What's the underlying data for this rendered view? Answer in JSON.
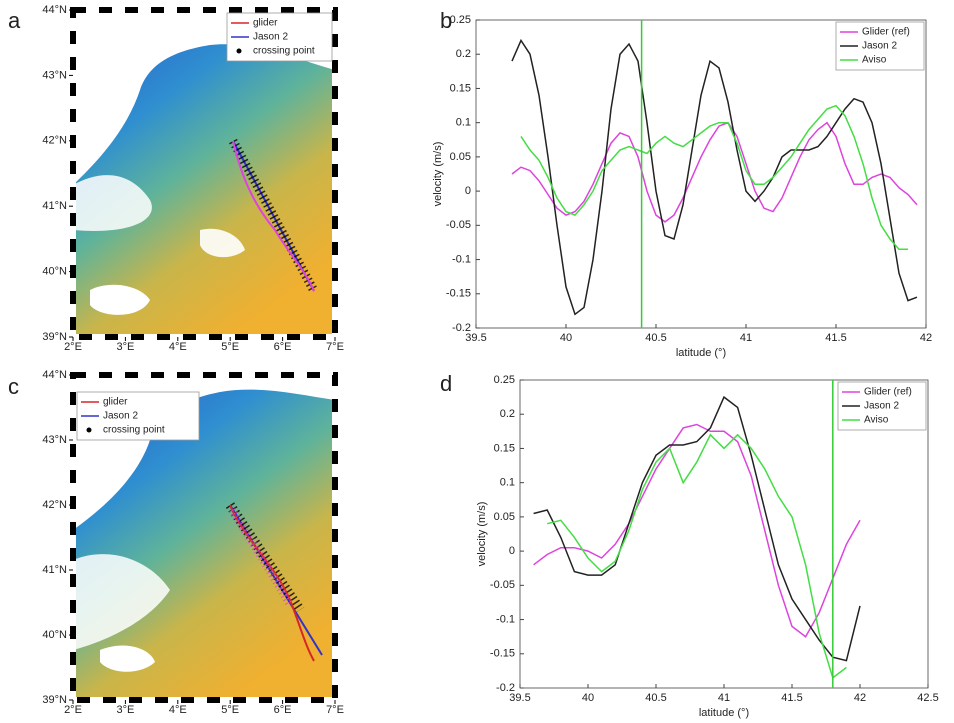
{
  "chart_data": [
    {
      "type": "map",
      "panel": "a",
      "xlim": [
        2,
        7
      ],
      "ylim": [
        39,
        44
      ],
      "xticks": [
        {
          "value": 2,
          "label": "2°E"
        },
        {
          "value": 3,
          "label": "3°E"
        },
        {
          "value": 4,
          "label": "4°E"
        },
        {
          "value": 5,
          "label": "5°E"
        },
        {
          "value": 6,
          "label": "6°E"
        },
        {
          "value": 7,
          "label": "7°E"
        }
      ],
      "yticks": [
        {
          "value": 39,
          "label": "39°N"
        },
        {
          "value": 40,
          "label": "40°N"
        },
        {
          "value": 41,
          "label": "41°N"
        },
        {
          "value": 42,
          "label": "42°N"
        },
        {
          "value": 43,
          "label": "43°N"
        },
        {
          "value": 44,
          "label": "44°N"
        }
      ],
      "legend": "upper right",
      "series": [
        {
          "name": "glider",
          "color": "#d62728"
        },
        {
          "name": "Jason 2",
          "color": "#3333cc"
        },
        {
          "name": "crossing point",
          "color": "#000000",
          "marker": "o"
        }
      ]
    },
    {
      "type": "line",
      "panel": "b",
      "xlabel": "latitude (°)",
      "ylabel": "velocity (m/s)",
      "xlim": [
        39.5,
        42
      ],
      "ylim": [
        -0.2,
        0.25
      ],
      "xticks": [
        39.5,
        40,
        40.5,
        41,
        41.5,
        42
      ],
      "yticks": [
        -0.2,
        -0.15,
        -0.1,
        -0.05,
        0,
        0.05,
        0.1,
        0.15,
        0.2,
        0.25
      ],
      "vline": 40.42,
      "vline_color": "#33cc33",
      "legend": "upper right",
      "x": [
        39.7,
        39.75,
        39.8,
        39.85,
        39.9,
        39.95,
        40.0,
        40.05,
        40.1,
        40.15,
        40.2,
        40.25,
        40.3,
        40.35,
        40.4,
        40.45,
        40.5,
        40.55,
        40.6,
        40.65,
        40.7,
        40.75,
        40.8,
        40.85,
        40.9,
        40.95,
        41.0,
        41.05,
        41.1,
        41.15,
        41.2,
        41.25,
        41.3,
        41.35,
        41.4,
        41.45,
        41.5,
        41.55,
        41.6,
        41.65,
        41.7,
        41.75,
        41.8,
        41.85,
        41.9,
        41.95
      ],
      "series": [
        {
          "name": "Glider (ref)",
          "color": "#dd44dd",
          "values": [
            0.025,
            0.035,
            0.03,
            0.015,
            -0.005,
            -0.025,
            -0.035,
            -0.03,
            -0.015,
            0.01,
            0.04,
            0.07,
            0.085,
            0.08,
            0.05,
            0.0,
            -0.035,
            -0.045,
            -0.035,
            -0.01,
            0.02,
            0.05,
            0.075,
            0.095,
            0.1,
            0.08,
            0.04,
            0.0,
            -0.025,
            -0.03,
            -0.01,
            0.02,
            0.05,
            0.075,
            0.09,
            0.1,
            0.08,
            0.04,
            0.01,
            0.01,
            0.02,
            0.025,
            0.02,
            0.005,
            -0.005,
            -0.02
          ]
        },
        {
          "name": "Jason 2",
          "color": "#222222",
          "values": [
            0.19,
            0.22,
            0.2,
            0.14,
            0.05,
            -0.05,
            -0.14,
            -0.18,
            -0.17,
            -0.1,
            0.0,
            0.12,
            0.2,
            0.215,
            0.19,
            0.1,
            0.0,
            -0.065,
            -0.07,
            -0.02,
            0.06,
            0.14,
            0.19,
            0.18,
            0.13,
            0.06,
            0.0,
            -0.015,
            0.0,
            0.02,
            0.05,
            0.06,
            0.06,
            0.06,
            0.065,
            0.08,
            0.1,
            0.12,
            0.135,
            0.13,
            0.1,
            0.04,
            -0.04,
            -0.12,
            -0.16,
            -0.155
          ]
        },
        {
          "name": "Aviso",
          "color": "#44dd44",
          "values": [
            null,
            0.08,
            0.06,
            0.045,
            0.02,
            -0.01,
            -0.03,
            -0.035,
            -0.02,
            0.0,
            0.03,
            0.045,
            0.06,
            0.065,
            0.06,
            0.055,
            0.07,
            0.08,
            0.07,
            0.065,
            0.075,
            0.085,
            0.095,
            0.1,
            0.1,
            0.07,
            0.03,
            0.01,
            0.01,
            0.02,
            0.035,
            0.05,
            0.07,
            0.09,
            0.105,
            0.12,
            0.125,
            0.11,
            0.08,
            0.04,
            -0.01,
            -0.05,
            -0.07,
            -0.085,
            -0.085,
            null
          ]
        }
      ]
    },
    {
      "type": "map",
      "panel": "c",
      "xlim": [
        2,
        7
      ],
      "ylim": [
        39,
        44
      ],
      "xticks": [
        {
          "value": 2,
          "label": "2°E"
        },
        {
          "value": 3,
          "label": "3°E"
        },
        {
          "value": 4,
          "label": "4°E"
        },
        {
          "value": 5,
          "label": "5°E"
        },
        {
          "value": 6,
          "label": "6°E"
        },
        {
          "value": 7,
          "label": "7°E"
        }
      ],
      "yticks": [
        {
          "value": 39,
          "label": "39°N"
        },
        {
          "value": 40,
          "label": "40°N"
        },
        {
          "value": 41,
          "label": "41°N"
        },
        {
          "value": 42,
          "label": "42°N"
        },
        {
          "value": 43,
          "label": "43°N"
        },
        {
          "value": 44,
          "label": "44°N"
        }
      ],
      "legend": "upper left",
      "series": [
        {
          "name": "glider",
          "color": "#d62728"
        },
        {
          "name": "Jason 2",
          "color": "#3333cc"
        },
        {
          "name": "crossing point",
          "color": "#000000",
          "marker": "o"
        }
      ]
    },
    {
      "type": "line",
      "panel": "d",
      "xlabel": "latitude (°)",
      "ylabel": "velocity (m/s)",
      "xlim": [
        39.5,
        42.5
      ],
      "ylim": [
        -0.2,
        0.25
      ],
      "xticks": [
        39.5,
        40,
        40.5,
        41,
        41.5,
        42,
        42.5
      ],
      "yticks": [
        -0.2,
        -0.15,
        -0.1,
        -0.05,
        0,
        0.05,
        0.1,
        0.15,
        0.2,
        0.25
      ],
      "vline": 41.8,
      "vline_color": "#33cc33",
      "legend": "upper right",
      "x": [
        39.6,
        39.7,
        39.8,
        39.9,
        40.0,
        40.1,
        40.2,
        40.3,
        40.4,
        40.5,
        40.6,
        40.7,
        40.8,
        40.9,
        41.0,
        41.1,
        41.2,
        41.3,
        41.4,
        41.5,
        41.6,
        41.7,
        41.8,
        41.9,
        42.0
      ],
      "series": [
        {
          "name": "Glider (ref)",
          "color": "#dd44dd",
          "values": [
            -0.02,
            -0.005,
            0.005,
            0.005,
            0.0,
            -0.01,
            0.01,
            0.04,
            0.08,
            0.12,
            0.15,
            0.18,
            0.185,
            0.175,
            0.175,
            0.16,
            0.11,
            0.03,
            -0.05,
            -0.11,
            -0.125,
            -0.09,
            -0.04,
            0.01,
            0.045
          ]
        },
        {
          "name": "Jason 2",
          "color": "#222222",
          "values": [
            0.055,
            0.06,
            0.02,
            -0.03,
            -0.035,
            -0.035,
            -0.02,
            0.04,
            0.1,
            0.14,
            0.155,
            0.155,
            0.16,
            0.18,
            0.225,
            0.21,
            0.14,
            0.06,
            -0.02,
            -0.07,
            -0.1,
            -0.13,
            -0.155,
            -0.16,
            -0.08
          ]
        },
        {
          "name": "Aviso",
          "color": "#44dd44",
          "values": [
            null,
            0.04,
            0.045,
            0.02,
            -0.01,
            -0.03,
            -0.015,
            0.03,
            0.09,
            0.13,
            0.15,
            0.1,
            0.13,
            0.17,
            0.15,
            0.17,
            0.15,
            0.12,
            0.08,
            0.05,
            -0.02,
            -0.12,
            -0.185,
            -0.17,
            null
          ]
        }
      ]
    }
  ]
}
